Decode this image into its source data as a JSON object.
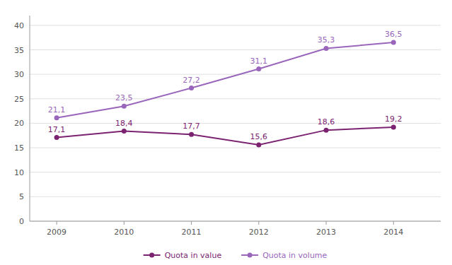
{
  "chart_data": {
    "type": "line",
    "x": [
      2009,
      2010,
      2011,
      2012,
      2013,
      2014
    ],
    "xlim": [
      2008.6,
      2014.7
    ],
    "xticks": [
      2009,
      2010,
      2011,
      2012,
      2013,
      2014
    ],
    "ylim": [
      0,
      42
    ],
    "yticks": [
      0,
      5,
      10,
      15,
      20,
      25,
      30,
      35,
      40
    ],
    "grid": true,
    "legend": "bottom",
    "data_labels": true,
    "marker": "circle",
    "series": [
      {
        "name": "Quota in value",
        "color": "#7b2370",
        "values": [
          17.1,
          18.4,
          17.7,
          15.6,
          18.6,
          19.2
        ],
        "value_labels": [
          "17,1",
          "18,4",
          "17,7",
          "15,6",
          "18,6",
          "19,2"
        ]
      },
      {
        "name": "Quota in volume",
        "color": "#9966bb",
        "values": [
          21.1,
          23.5,
          27.2,
          31.1,
          35.3,
          36.5
        ],
        "value_labels": [
          "21,1",
          "23,5",
          "27,2",
          "31,1",
          "35,3",
          "36,5"
        ]
      }
    ]
  }
}
